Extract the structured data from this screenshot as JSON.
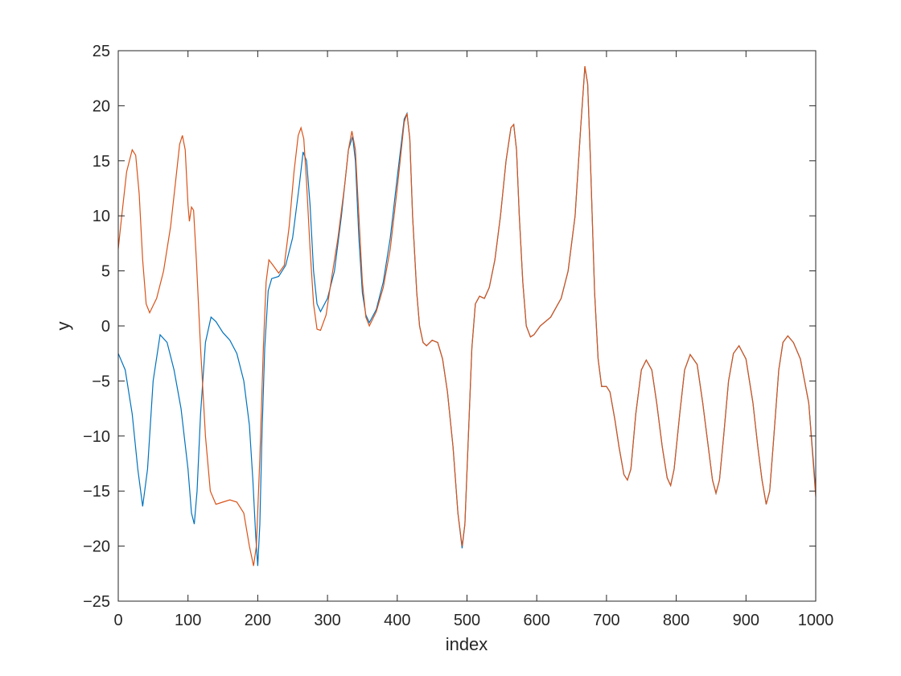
{
  "chart_data": {
    "type": "line",
    "title": "",
    "xlabel": "index",
    "ylabel": "y",
    "xlim": [
      0,
      1000
    ],
    "ylim": [
      -25,
      25
    ],
    "x_ticks": [
      0,
      100,
      200,
      300,
      400,
      500,
      600,
      700,
      800,
      900,
      1000
    ],
    "y_ticks": [
      -25,
      -20,
      -15,
      -10,
      -5,
      0,
      5,
      10,
      15,
      20,
      25
    ],
    "grid": false,
    "legend": "none",
    "box": true,
    "series": [
      {
        "color": "#0072BD",
        "points": [
          [
            0,
            -2.5
          ],
          [
            10,
            -4
          ],
          [
            20,
            -8
          ],
          [
            28,
            -13
          ],
          [
            35,
            -16.4
          ],
          [
            42,
            -13
          ],
          [
            50,
            -5
          ],
          [
            60,
            -0.8
          ],
          [
            70,
            -1.5
          ],
          [
            80,
            -4
          ],
          [
            90,
            -7.5
          ],
          [
            100,
            -13
          ],
          [
            105,
            -17
          ],
          [
            109,
            -18
          ],
          [
            113,
            -15
          ],
          [
            118,
            -8
          ],
          [
            125,
            -1.5
          ],
          [
            133,
            0.8
          ],
          [
            140,
            0.4
          ],
          [
            150,
            -0.6
          ],
          [
            160,
            -1.3
          ],
          [
            170,
            -2.5
          ],
          [
            180,
            -5
          ],
          [
            188,
            -9
          ],
          [
            193,
            -14
          ],
          [
            197,
            -19
          ],
          [
            200,
            -21.8
          ],
          [
            203,
            -18
          ],
          [
            206,
            -10
          ],
          [
            210,
            -2
          ],
          [
            215,
            3.2
          ],
          [
            220,
            4.3
          ],
          [
            230,
            4.5
          ],
          [
            240,
            5.5
          ],
          [
            250,
            8
          ],
          [
            260,
            13
          ],
          [
            265,
            15.8
          ],
          [
            270,
            15
          ],
          [
            275,
            11
          ],
          [
            280,
            5
          ],
          [
            285,
            2
          ],
          [
            290,
            1.3
          ],
          [
            300,
            2.5
          ],
          [
            310,
            5
          ],
          [
            320,
            10
          ],
          [
            330,
            16
          ],
          [
            336,
            17.2
          ],
          [
            340,
            15
          ],
          [
            345,
            8
          ],
          [
            350,
            3
          ],
          [
            355,
            1
          ],
          [
            360,
            0.3
          ],
          [
            370,
            1.5
          ],
          [
            380,
            4
          ],
          [
            390,
            8
          ],
          [
            400,
            13.5
          ],
          [
            410,
            18.8
          ],
          [
            414,
            19.3
          ],
          [
            418,
            17
          ],
          [
            422,
            10
          ],
          [
            428,
            3
          ],
          [
            432,
            0
          ],
          [
            437,
            -1.5
          ],
          [
            442,
            -1.8
          ],
          [
            450,
            -1.3
          ],
          [
            458,
            -1.5
          ],
          [
            465,
            -3
          ],
          [
            472,
            -6
          ],
          [
            480,
            -11
          ],
          [
            487,
            -17
          ],
          [
            493,
            -20.2
          ],
          [
            497,
            -18
          ],
          [
            502,
            -10
          ],
          [
            507,
            -2
          ],
          [
            512,
            2
          ],
          [
            518,
            2.7
          ],
          [
            525,
            2.5
          ],
          [
            532,
            3.5
          ],
          [
            540,
            6
          ],
          [
            548,
            10
          ],
          [
            556,
            15
          ],
          [
            563,
            18
          ],
          [
            567,
            18.3
          ],
          [
            571,
            16
          ],
          [
            575,
            10
          ],
          [
            580,
            4
          ],
          [
            585,
            0
          ],
          [
            591,
            -1
          ],
          [
            596,
            -0.8
          ],
          [
            605,
            0
          ],
          [
            620,
            0.8
          ],
          [
            635,
            2.5
          ],
          [
            645,
            5
          ],
          [
            655,
            10
          ],
          [
            663,
            18
          ],
          [
            669,
            23.5
          ],
          [
            673,
            22
          ],
          [
            677,
            15
          ],
          [
            683,
            3
          ],
          [
            688,
            -3
          ],
          [
            693,
            -5.5
          ],
          [
            700,
            -5.5
          ],
          [
            705,
            -6
          ],
          [
            712,
            -8.5
          ],
          [
            718,
            -11
          ],
          [
            725,
            -13.5
          ],
          [
            730,
            -14
          ],
          [
            735,
            -13
          ],
          [
            742,
            -8
          ],
          [
            750,
            -4
          ],
          [
            757,
            -3.1
          ],
          [
            765,
            -4
          ],
          [
            772,
            -7
          ],
          [
            780,
            -11
          ],
          [
            787,
            -13.8
          ],
          [
            792,
            -14.5
          ],
          [
            797,
            -13
          ],
          [
            805,
            -8
          ],
          [
            812,
            -4
          ],
          [
            820,
            -2.6
          ],
          [
            830,
            -3.5
          ],
          [
            838,
            -7
          ],
          [
            846,
            -11
          ],
          [
            852,
            -14
          ],
          [
            857,
            -15.2
          ],
          [
            862,
            -14
          ],
          [
            868,
            -10
          ],
          [
            875,
            -5
          ],
          [
            882,
            -2.5
          ],
          [
            890,
            -1.8
          ],
          [
            900,
            -3
          ],
          [
            910,
            -7
          ],
          [
            917,
            -11
          ],
          [
            923,
            -14
          ],
          [
            929,
            -16.2
          ],
          [
            934,
            -15
          ],
          [
            940,
            -10
          ],
          [
            947,
            -4
          ],
          [
            953,
            -1.5
          ],
          [
            960,
            -0.9
          ],
          [
            968,
            -1.5
          ],
          [
            978,
            -3
          ],
          [
            990,
            -7
          ],
          [
            1000,
            -15
          ]
        ]
      },
      {
        "color": "#D95319",
        "points": [
          [
            0,
            7
          ],
          [
            5,
            10
          ],
          [
            12,
            14
          ],
          [
            20,
            16
          ],
          [
            25,
            15.5
          ],
          [
            30,
            12
          ],
          [
            35,
            6
          ],
          [
            40,
            2
          ],
          [
            45,
            1.2
          ],
          [
            55,
            2.5
          ],
          [
            65,
            5
          ],
          [
            75,
            9
          ],
          [
            82,
            13
          ],
          [
            88,
            16.5
          ],
          [
            92,
            17.3
          ],
          [
            96,
            16
          ],
          [
            100,
            11
          ],
          [
            102,
            9.5
          ],
          [
            105,
            10.8
          ],
          [
            108,
            10.5
          ],
          [
            112,
            6
          ],
          [
            118,
            -2
          ],
          [
            125,
            -10
          ],
          [
            132,
            -15
          ],
          [
            140,
            -16.2
          ],
          [
            150,
            -16
          ],
          [
            160,
            -15.8
          ],
          [
            170,
            -16
          ],
          [
            180,
            -17
          ],
          [
            188,
            -20
          ],
          [
            194,
            -21.8
          ],
          [
            198,
            -20
          ],
          [
            203,
            -12
          ],
          [
            208,
            -2
          ],
          [
            212,
            4
          ],
          [
            216,
            6
          ],
          [
            222,
            5.5
          ],
          [
            230,
            4.8
          ],
          [
            238,
            5.5
          ],
          [
            245,
            9
          ],
          [
            252,
            14
          ],
          [
            258,
            17.3
          ],
          [
            262,
            18
          ],
          [
            266,
            17
          ],
          [
            270,
            13
          ],
          [
            275,
            7
          ],
          [
            280,
            2
          ],
          [
            285,
            -0.3
          ],
          [
            290,
            -0.4
          ],
          [
            298,
            1
          ],
          [
            305,
            4
          ],
          [
            315,
            8
          ],
          [
            325,
            13
          ],
          [
            330,
            16
          ],
          [
            335,
            17.7
          ],
          [
            340,
            16
          ],
          [
            345,
            10
          ],
          [
            350,
            4
          ],
          [
            355,
            0.8
          ],
          [
            360,
            0
          ],
          [
            370,
            1.3
          ],
          [
            380,
            3.5
          ],
          [
            390,
            7
          ],
          [
            400,
            12.5
          ],
          [
            410,
            18.5
          ],
          [
            414,
            19.3
          ],
          [
            418,
            17
          ],
          [
            422,
            10
          ],
          [
            428,
            3
          ],
          [
            432,
            0
          ],
          [
            437,
            -1.5
          ],
          [
            442,
            -1.8
          ],
          [
            450,
            -1.3
          ],
          [
            458,
            -1.5
          ],
          [
            465,
            -3
          ],
          [
            472,
            -6
          ],
          [
            480,
            -11
          ],
          [
            487,
            -17
          ],
          [
            493,
            -20
          ],
          [
            497,
            -18
          ],
          [
            502,
            -10
          ],
          [
            507,
            -2
          ],
          [
            512,
            2
          ],
          [
            518,
            2.7
          ],
          [
            525,
            2.5
          ],
          [
            532,
            3.5
          ],
          [
            540,
            6
          ],
          [
            548,
            10
          ],
          [
            556,
            15
          ],
          [
            563,
            18
          ],
          [
            567,
            18.3
          ],
          [
            571,
            16
          ],
          [
            575,
            10
          ],
          [
            580,
            4
          ],
          [
            585,
            0
          ],
          [
            591,
            -1
          ],
          [
            596,
            -0.8
          ],
          [
            605,
            0
          ],
          [
            620,
            0.8
          ],
          [
            635,
            2.5
          ],
          [
            645,
            5
          ],
          [
            655,
            10
          ],
          [
            663,
            18
          ],
          [
            669,
            23.6
          ],
          [
            673,
            22
          ],
          [
            677,
            15
          ],
          [
            683,
            3
          ],
          [
            688,
            -3
          ],
          [
            693,
            -5.5
          ],
          [
            700,
            -5.5
          ],
          [
            705,
            -6
          ],
          [
            712,
            -8.5
          ],
          [
            718,
            -11
          ],
          [
            725,
            -13.5
          ],
          [
            730,
            -14
          ],
          [
            735,
            -13
          ],
          [
            742,
            -8
          ],
          [
            750,
            -4
          ],
          [
            757,
            -3.1
          ],
          [
            765,
            -4
          ],
          [
            772,
            -7
          ],
          [
            780,
            -11
          ],
          [
            787,
            -13.8
          ],
          [
            792,
            -14.5
          ],
          [
            797,
            -13
          ],
          [
            805,
            -8
          ],
          [
            812,
            -4
          ],
          [
            820,
            -2.6
          ],
          [
            830,
            -3.5
          ],
          [
            838,
            -7
          ],
          [
            846,
            -11
          ],
          [
            852,
            -14
          ],
          [
            857,
            -15.2
          ],
          [
            862,
            -14
          ],
          [
            868,
            -10
          ],
          [
            875,
            -5
          ],
          [
            882,
            -2.5
          ],
          [
            890,
            -1.8
          ],
          [
            900,
            -3
          ],
          [
            910,
            -7
          ],
          [
            917,
            -11
          ],
          [
            923,
            -14
          ],
          [
            929,
            -16.2
          ],
          [
            934,
            -15
          ],
          [
            940,
            -10
          ],
          [
            947,
            -4
          ],
          [
            953,
            -1.5
          ],
          [
            960,
            -0.9
          ],
          [
            968,
            -1.5
          ],
          [
            978,
            -3
          ],
          [
            990,
            -7
          ],
          [
            1000,
            -15.5
          ]
        ]
      }
    ]
  }
}
